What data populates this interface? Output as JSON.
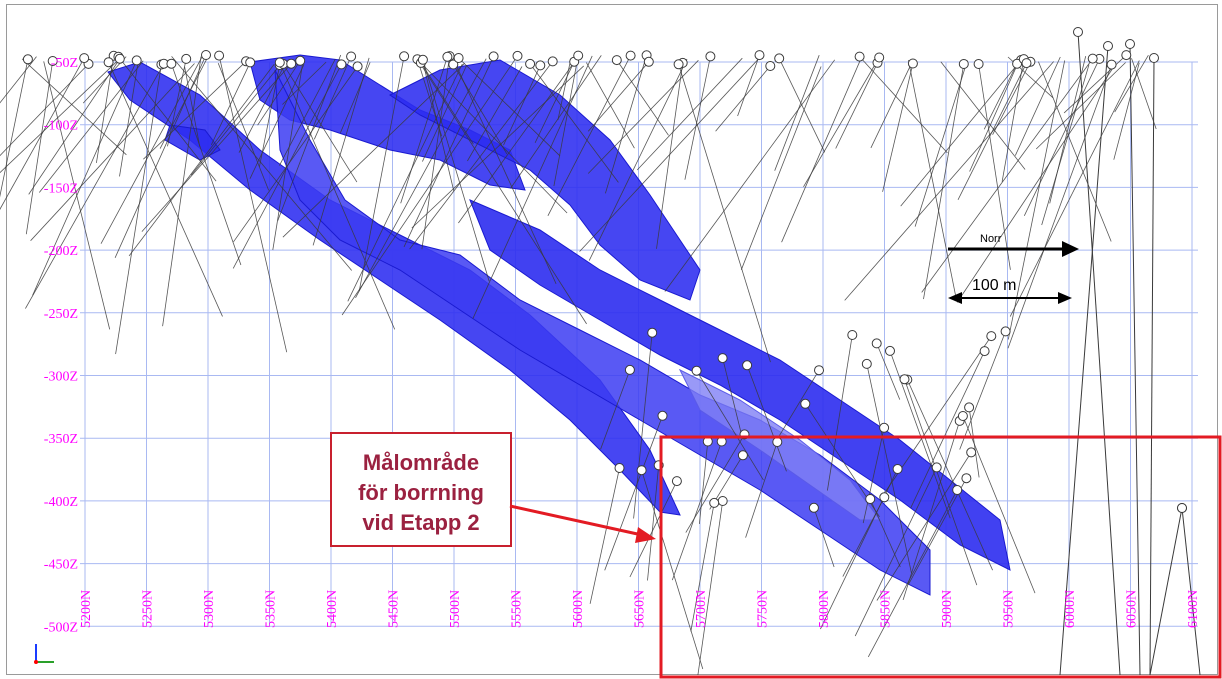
{
  "section": {
    "z_labels": [
      "-50Z",
      "-100Z",
      "-150Z",
      "-200Z",
      "-250Z",
      "-300Z",
      "-350Z",
      "-400Z",
      "-450Z",
      "-500Z"
    ],
    "n_labels": [
      "5200N",
      "5250N",
      "5300N",
      "5350N",
      "5400N",
      "5450N",
      "5500N",
      "5550N",
      "5600N",
      "5650N",
      "5700N",
      "5750N",
      "5800N",
      "5850N",
      "5900N",
      "5950N",
      "6000N",
      "6050N",
      "6100N"
    ]
  },
  "direction": {
    "label": "Norr"
  },
  "scale": {
    "label": "100 m"
  },
  "annotation": {
    "lines": [
      "Målområde",
      "för borrning",
      "vid Etapp 2"
    ]
  },
  "colors": {
    "grid": "#a9b9f2",
    "axis_labels": "#ff00ff",
    "ore_body": "#2c2cf0",
    "ore_body_light": "#7f7ff5",
    "drillhole": "#3a3a3a",
    "annotation": "#e31b23",
    "annotation_text": "#9b2140"
  }
}
